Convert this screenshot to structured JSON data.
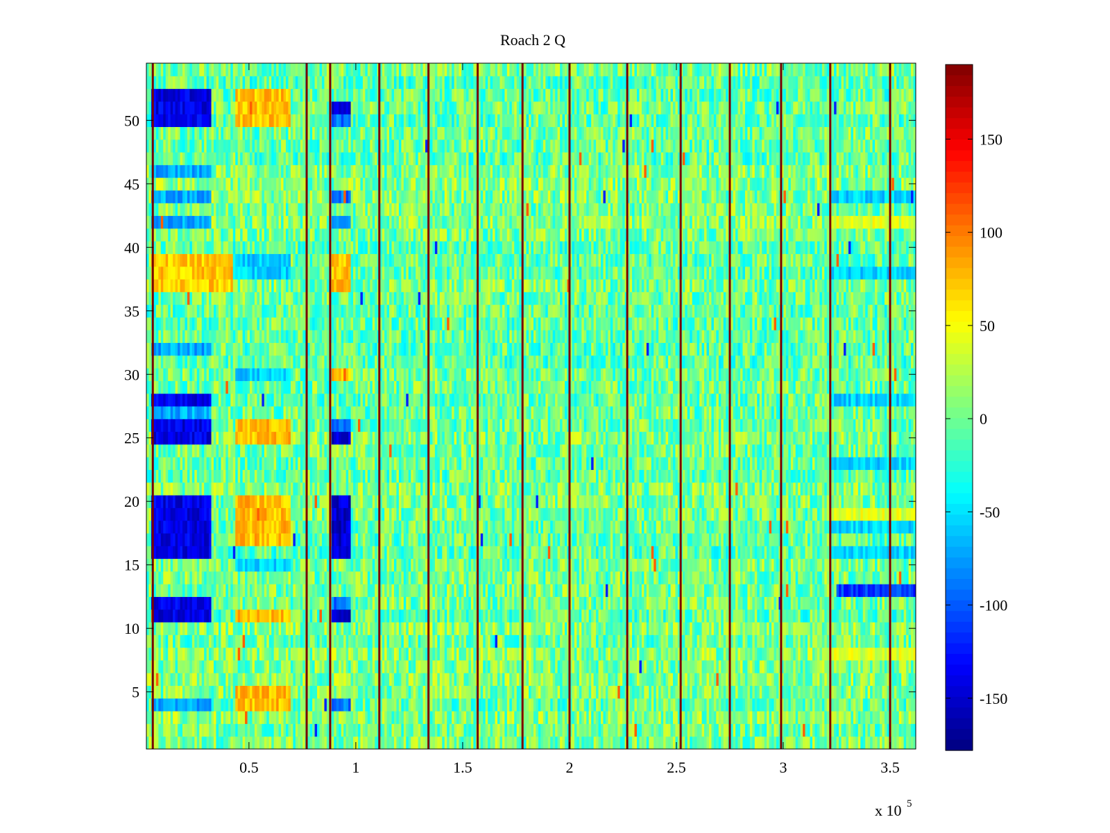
{
  "chart_data": {
    "type": "heatmap",
    "title": "Roach 2 Q",
    "xlabel": "",
    "ylabel": "",
    "x_multiplier_label": "x 10",
    "x_multiplier_exponent": "5",
    "xlim": [
      2000,
      362000
    ],
    "ylim": [
      0.5,
      54.5
    ],
    "x_ticks": [
      {
        "value": 50000,
        "label": "0.5"
      },
      {
        "value": 100000,
        "label": "1"
      },
      {
        "value": 150000,
        "label": "1.5"
      },
      {
        "value": 200000,
        "label": "2"
      },
      {
        "value": 250000,
        "label": "2.5"
      },
      {
        "value": 300000,
        "label": "3"
      },
      {
        "value": 350000,
        "label": "3.5"
      }
    ],
    "y_ticks": [
      {
        "value": 5,
        "label": "5"
      },
      {
        "value": 10,
        "label": "10"
      },
      {
        "value": 15,
        "label": "15"
      },
      {
        "value": 20,
        "label": "20"
      },
      {
        "value": 25,
        "label": "25"
      },
      {
        "value": 30,
        "label": "30"
      },
      {
        "value": 35,
        "label": "35"
      },
      {
        "value": 40,
        "label": "40"
      },
      {
        "value": 45,
        "label": "45"
      },
      {
        "value": 50,
        "label": "50"
      }
    ],
    "colorbar": {
      "colormap": "jet",
      "range": [
        -178,
        190
      ],
      "ticks": [
        {
          "value": 150,
          "label": "150"
        },
        {
          "value": 100,
          "label": "100"
        },
        {
          "value": 50,
          "label": "50"
        },
        {
          "value": 0,
          "label": "0"
        },
        {
          "value": -50,
          "label": "-50"
        },
        {
          "value": -100,
          "label": "-100"
        },
        {
          "value": -150,
          "label": "-150"
        }
      ]
    },
    "vertical_spike_columns_x": [
      5000,
      77000,
      88000,
      111000,
      134000,
      157000,
      178000,
      200000,
      227000,
      252000,
      275000,
      299000,
      322000,
      350000
    ],
    "regions": [
      {
        "x": [
          4000,
          32000
        ],
        "rows": [
          11,
          12,
          16,
          17,
          18,
          19,
          20,
          25,
          26,
          28,
          50,
          51,
          52
        ],
        "value": -140
      },
      {
        "x": [
          4000,
          32000
        ],
        "rows": [
          4,
          27,
          32,
          42,
          44,
          46
        ],
        "value": -70
      },
      {
        "x": [
          4000,
          42000
        ],
        "rows": [
          37,
          38,
          39
        ],
        "value": 70
      },
      {
        "x": [
          44000,
          70000
        ],
        "rows": [
          4,
          5,
          11,
          17,
          18,
          19,
          20,
          25,
          26,
          50,
          51,
          52
        ],
        "value": 75
      },
      {
        "x": [
          44000,
          70000
        ],
        "rows": [
          15,
          30,
          38,
          39
        ],
        "value": -55
      },
      {
        "x": [
          89000,
          98000
        ],
        "rows": [
          11,
          16,
          17,
          18,
          19,
          20,
          25,
          51
        ],
        "value": -150
      },
      {
        "x": [
          89000,
          98000
        ],
        "rows": [
          4,
          12,
          26,
          42,
          44,
          50
        ],
        "value": -90
      },
      {
        "x": [
          89000,
          98000
        ],
        "rows": [
          37,
          38,
          39,
          30
        ],
        "value": 75
      },
      {
        "x": [
          325000,
          362000
        ],
        "rows": [
          13
        ],
        "value": -110
      },
      {
        "x": [
          322000,
          362000
        ],
        "rows": [
          16,
          18,
          23,
          28,
          38,
          44
        ],
        "value": -55
      },
      {
        "x": [
          322000,
          362000
        ],
        "rows": [
          8,
          19,
          42
        ],
        "value": 40
      }
    ],
    "background_value_range": [
      -40,
      40
    ],
    "n_rows": 54,
    "grid": false
  }
}
